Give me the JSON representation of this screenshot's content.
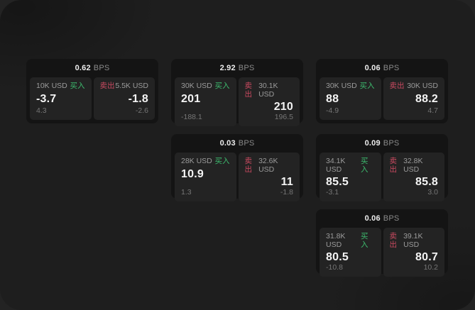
{
  "labels": {
    "bps_unit": "BPS",
    "buy": "买入",
    "sell": "卖出"
  },
  "colors": {
    "buy": "#3dbb6e",
    "sell": "#c94a60",
    "page_background": "#1e1e1e",
    "card_background": "#141414",
    "panel_background": "#232323"
  },
  "cards": [
    {
      "bps": "0.62",
      "buy": {
        "amount": "10K USD",
        "value": "-3.7",
        "sub": "4.3"
      },
      "sell": {
        "amount": "5.5K USD",
        "value": "-1.8",
        "sub": "-2.6"
      }
    },
    {
      "bps": "2.92",
      "buy": {
        "amount": "30K USD",
        "value": "201",
        "sub": "-188.1"
      },
      "sell": {
        "amount": "30.1K USD",
        "value": "210",
        "sub": "196.5"
      }
    },
    {
      "bps": "0.06",
      "buy": {
        "amount": "30K USD",
        "value": "88",
        "sub": "-4.9"
      },
      "sell": {
        "amount": "30K USD",
        "value": "88.2",
        "sub": "4.7"
      }
    },
    {
      "bps": "0.03",
      "buy": {
        "amount": "28K USD",
        "value": "10.9",
        "sub": "1.3"
      },
      "sell": {
        "amount": "32.6K USD",
        "value": "11",
        "sub": "-1.8"
      }
    },
    {
      "bps": "0.09",
      "buy": {
        "amount": "34.1K USD",
        "value": "85.5",
        "sub": "-3.1"
      },
      "sell": {
        "amount": "32.8K USD",
        "value": "85.8",
        "sub": "3.0"
      }
    },
    {
      "bps": "0.06",
      "buy": {
        "amount": "31.8K USD",
        "value": "80.5",
        "sub": "-10.8"
      },
      "sell": {
        "amount": "39.1K USD",
        "value": "80.7",
        "sub": "10.2"
      }
    }
  ]
}
